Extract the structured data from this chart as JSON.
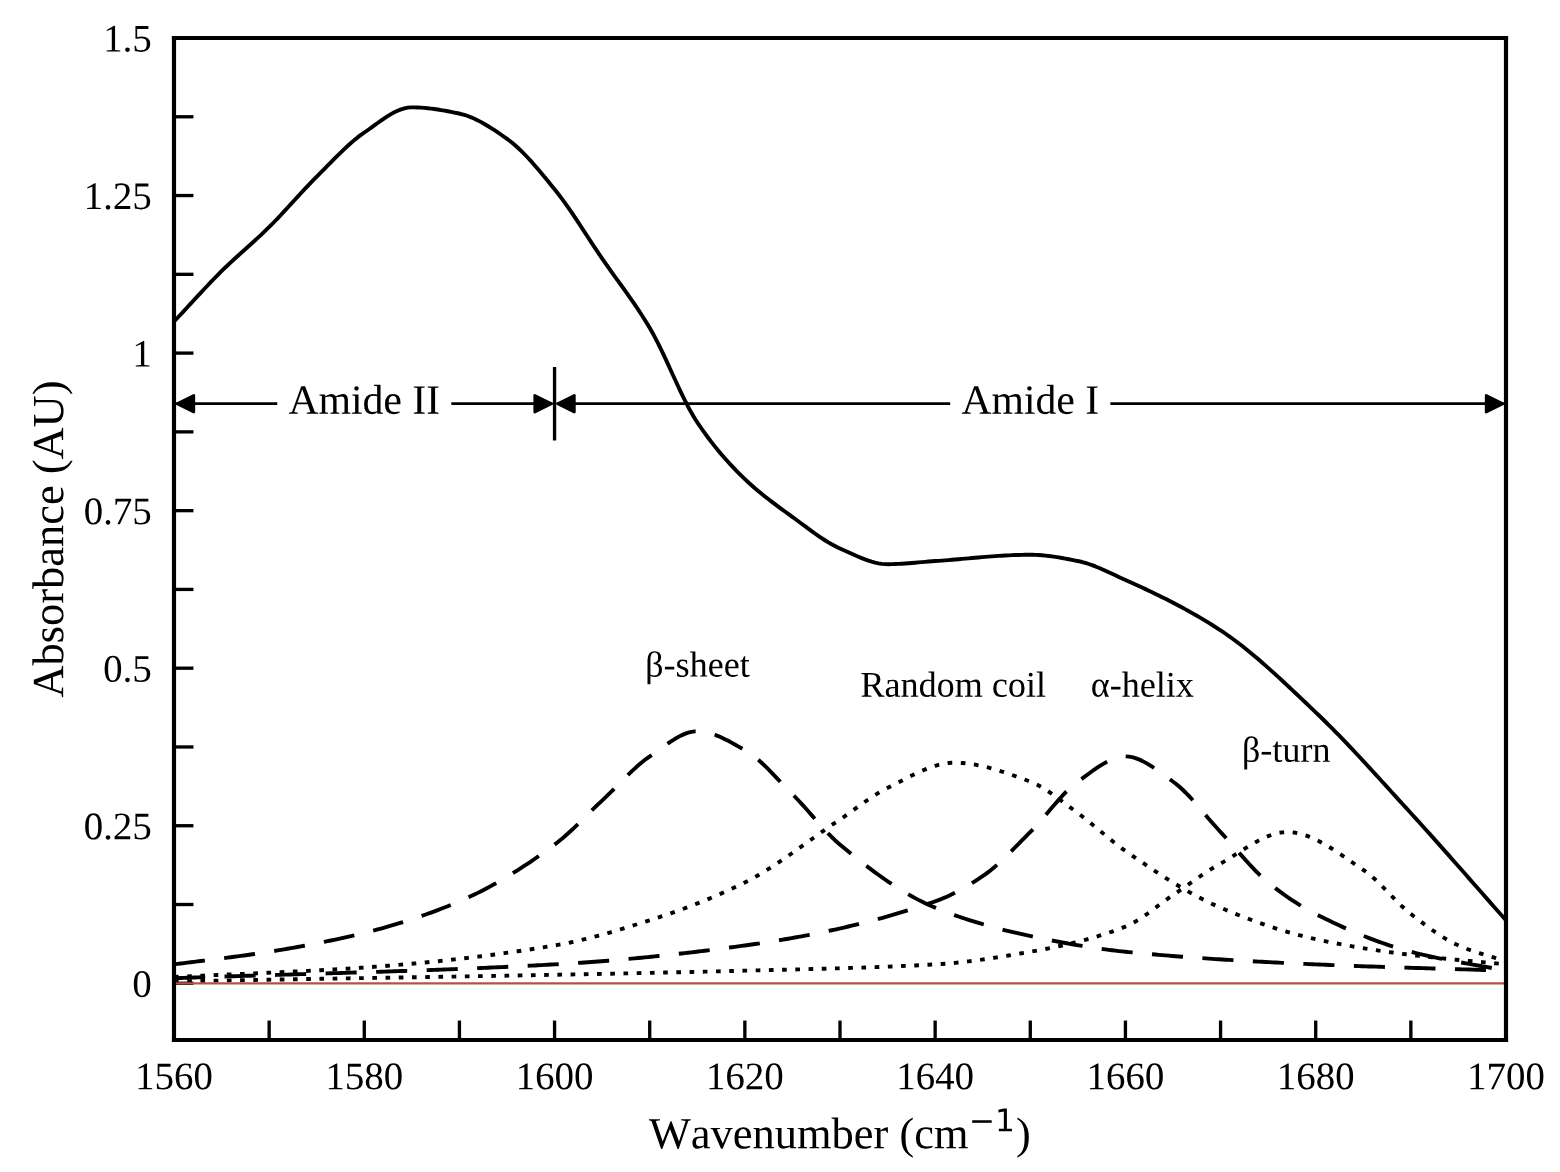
{
  "chart_data": {
    "type": "line",
    "xlabel": "Wavenumber (cm$^{−1}$)",
    "ylabel": "Absorbance (AU)",
    "xlim": [
      1560,
      1700
    ],
    "ylim": [
      -0.09,
      1.5
    ],
    "xticks": [
      1560,
      {
        "value": 1570,
        "label": null
      },
      1580,
      {
        "value": 1590,
        "label": null
      },
      1600,
      {
        "value": 1610,
        "label": null
      },
      1620,
      {
        "value": 1630,
        "label": null
      },
      1640,
      {
        "value": 1650,
        "label": null
      },
      1660,
      {
        "value": 1670,
        "label": null
      },
      1680,
      {
        "value": 1690,
        "label": null
      },
      1700
    ],
    "yticks": [
      0,
      {
        "value": 0.125,
        "label": null
      },
      0.25,
      {
        "value": 0.375,
        "label": null
      },
      0.5,
      {
        "value": 0.625,
        "label": null
      },
      0.75,
      {
        "value": 0.875,
        "label": null
      },
      1,
      {
        "value": 1.125,
        "label": null
      },
      1.25,
      {
        "value": 1.375,
        "label": null
      },
      1.5
    ],
    "grid": false,
    "marker": "none",
    "series": [
      {
        "color": "#000000",
        "line_style": "solid",
        "x": [
          1560,
          1565,
          1570,
          1575,
          1580,
          1585,
          1590,
          1595,
          1600,
          1605,
          1610,
          1615,
          1620,
          1625,
          1630,
          1635,
          1640,
          1650,
          1655,
          1660,
          1670,
          1680,
          1690,
          1700
        ],
        "values": [
          1.05,
          1.13,
          1.2,
          1.28,
          1.35,
          1.39,
          1.38,
          1.34,
          1.26,
          1.15,
          1.04,
          0.89,
          0.8,
          0.74,
          0.69,
          0.665,
          0.67,
          0.68,
          0.67,
          0.64,
          0.56,
          0.43,
          0.27,
          0.1
        ]
      },
      {
        "color": "#000000",
        "line_style": "dashed",
        "x": [
          1560,
          1570,
          1580,
          1590,
          1600,
          1605,
          1610,
          1615,
          1620,
          1625,
          1630,
          1640,
          1650,
          1660,
          1680,
          1700
        ],
        "values": [
          0.03,
          0.05,
          0.08,
          0.13,
          0.22,
          0.29,
          0.36,
          0.4,
          0.37,
          0.3,
          0.22,
          0.12,
          0.075,
          0.05,
          0.03,
          0.02
        ]
      },
      {
        "color": "#000000",
        "line_style": "dotted",
        "x": [
          1560,
          1580,
          1600,
          1610,
          1620,
          1630,
          1635,
          1642,
          1650,
          1655,
          1660,
          1670,
          1680,
          1690,
          1700
        ],
        "values": [
          0.01,
          0.025,
          0.06,
          0.1,
          0.16,
          0.26,
          0.31,
          0.35,
          0.32,
          0.27,
          0.21,
          0.12,
          0.07,
          0.045,
          0.03
        ]
      },
      {
        "color": "#000000",
        "line_style": "dashed",
        "x": [
          1560,
          1600,
          1620,
          1640,
          1645,
          1650,
          1655,
          1660,
          1665,
          1670,
          1675,
          1680,
          1690,
          1700
        ],
        "values": [
          0.008,
          0.03,
          0.06,
          0.13,
          0.17,
          0.24,
          0.32,
          0.36,
          0.32,
          0.24,
          0.16,
          0.11,
          0.05,
          0.02
        ]
      },
      {
        "color": "#000000",
        "line_style": "dotted",
        "x": [
          1560,
          1620,
          1640,
          1650,
          1660,
          1665,
          1670,
          1677,
          1685,
          1690,
          1695,
          1700
        ],
        "values": [
          0.003,
          0.02,
          0.03,
          0.05,
          0.09,
          0.14,
          0.19,
          0.24,
          0.18,
          0.11,
          0.06,
          0.035
        ]
      }
    ],
    "ref_lines": [
      {
        "axis": "y",
        "value": 0,
        "color": "#b0524a",
        "line_style": "solid"
      }
    ],
    "annotations": [
      "Amide II",
      "Amide I",
      "β-sheet",
      "Random coil",
      "α-helix",
      "β-turn"
    ]
  }
}
